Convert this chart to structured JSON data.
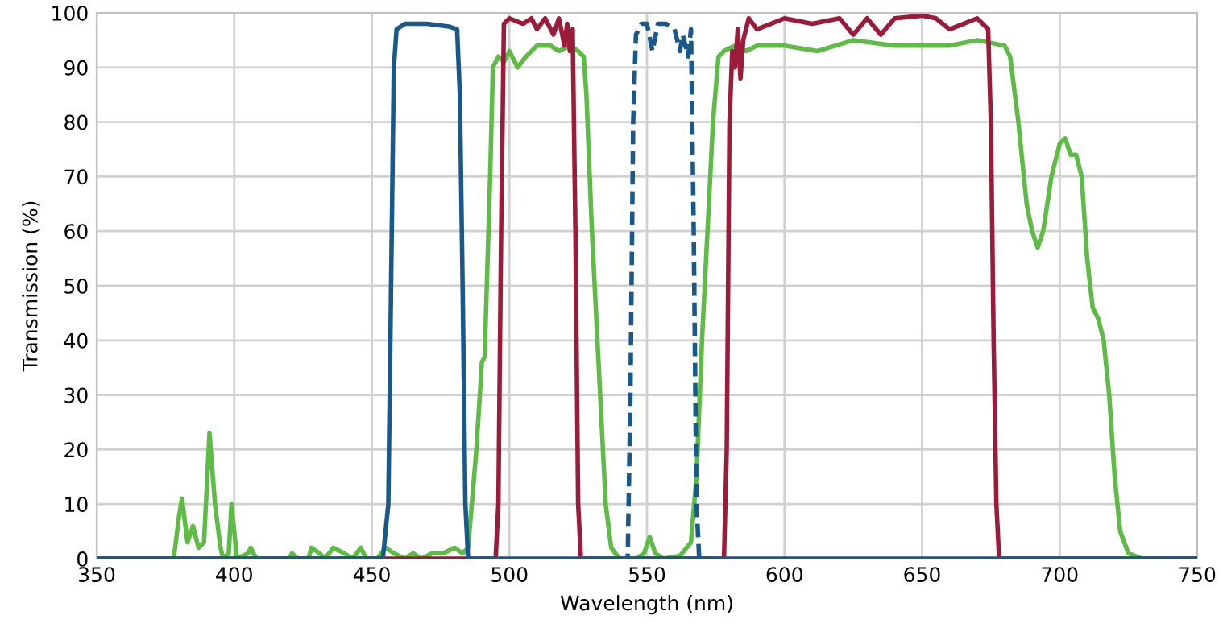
{
  "chart_data": {
    "type": "line",
    "xlabel": "Wavelength (nm)",
    "ylabel": "Transmission (%)",
    "xlim": [
      350,
      750
    ],
    "ylim": [
      0,
      100
    ],
    "xticks": [
      350,
      400,
      450,
      500,
      550,
      600,
      650,
      700,
      750
    ],
    "yticks": [
      0,
      10,
      20,
      30,
      40,
      50,
      60,
      70,
      80,
      90,
      100
    ],
    "grid": true,
    "legend": false,
    "series": [
      {
        "color": "#5dbb46",
        "x": [
          350,
          378,
          380,
          381,
          383,
          385,
          387,
          389,
          391,
          393,
          395,
          396,
          398,
          399,
          401,
          405,
          406,
          408,
          420,
          421,
          423,
          427,
          428,
          431,
          433,
          436,
          440,
          443,
          446,
          448,
          452,
          455,
          458,
          462,
          465,
          468,
          472,
          476,
          480,
          483,
          485,
          488,
          490,
          491,
          493,
          494,
          496,
          498,
          500,
          503,
          506,
          510,
          515,
          518,
          522,
          525,
          527,
          528,
          530,
          533,
          535,
          537,
          540,
          546,
          549,
          551,
          553,
          556,
          562,
          566,
          568,
          570,
          572,
          574,
          576,
          578,
          582,
          586,
          590,
          600,
          612,
          625,
          640,
          650,
          660,
          670,
          680,
          682,
          685,
          688,
          690,
          692,
          694,
          697,
          700,
          702,
          704,
          706,
          708,
          710,
          712,
          714,
          716,
          718,
          720,
          722,
          725,
          730,
          750
        ],
        "values": [
          0,
          0,
          8,
          11,
          3,
          6,
          2,
          3,
          23,
          10,
          2,
          0,
          1,
          10,
          0,
          1,
          2,
          0,
          0,
          1,
          0,
          0,
          2,
          1,
          0,
          2,
          1,
          0,
          2,
          0,
          0,
          2,
          1,
          0,
          1,
          0,
          1,
          1,
          2,
          1,
          2,
          20,
          36,
          37,
          70,
          90,
          92,
          91,
          93,
          90,
          92,
          94,
          94,
          93,
          94,
          93,
          92,
          85,
          60,
          30,
          10,
          2,
          0,
          0,
          1,
          4,
          1,
          0,
          0.5,
          3,
          15,
          40,
          60,
          80,
          92,
          93,
          94,
          93,
          94,
          94,
          93,
          95,
          94,
          94,
          94,
          95,
          94,
          92,
          80,
          65,
          60,
          57,
          60,
          70,
          76,
          77,
          74,
          74,
          70,
          55,
          46,
          44,
          40,
          30,
          15,
          5,
          1,
          0,
          0
        ]
      },
      {
        "color": "#9b1b3a",
        "x": [
          350,
          495,
          496,
          497,
          498,
          500,
          505,
          508,
          510,
          513,
          516,
          518,
          520,
          521,
          522,
          523,
          524,
          525,
          526,
          578,
          579,
          580,
          581,
          582,
          583,
          584,
          585,
          587,
          590,
          600,
          610,
          620,
          625,
          630,
          635,
          640,
          650,
          655,
          660,
          665,
          670,
          674,
          675,
          676,
          677,
          678,
          750
        ],
        "values": [
          0,
          0,
          10,
          60,
          98,
          99,
          98,
          99,
          97,
          99,
          96,
          99,
          94,
          98,
          93,
          97,
          60,
          10,
          0,
          0,
          20,
          80,
          93,
          90,
          97,
          88,
          95,
          99,
          97,
          99,
          98,
          99,
          96,
          99,
          96,
          99,
          99.5,
          99,
          97,
          98,
          99,
          97,
          80,
          40,
          10,
          0,
          0
        ]
      },
      {
        "color": "#19588a",
        "x": [
          350,
          454,
          456,
          457,
          458,
          459,
          462,
          470,
          478,
          481,
          482,
          483,
          484,
          485,
          750
        ],
        "values": [
          0,
          0,
          10,
          50,
          90,
          97,
          98,
          98,
          97.5,
          97,
          85,
          50,
          10,
          0,
          0
        ]
      },
      {
        "color": "#19588a",
        "line_style": "dashed",
        "x": [
          540,
          543,
          544,
          545,
          546,
          548,
          550,
          552,
          554,
          557,
          560,
          562,
          563,
          565,
          566,
          567,
          568,
          569,
          572
        ],
        "values": [
          0,
          0,
          30,
          80,
          96,
          98,
          98,
          93,
          98,
          98,
          97,
          93,
          96,
          92,
          97,
          60,
          10,
          0,
          0
        ]
      }
    ]
  }
}
